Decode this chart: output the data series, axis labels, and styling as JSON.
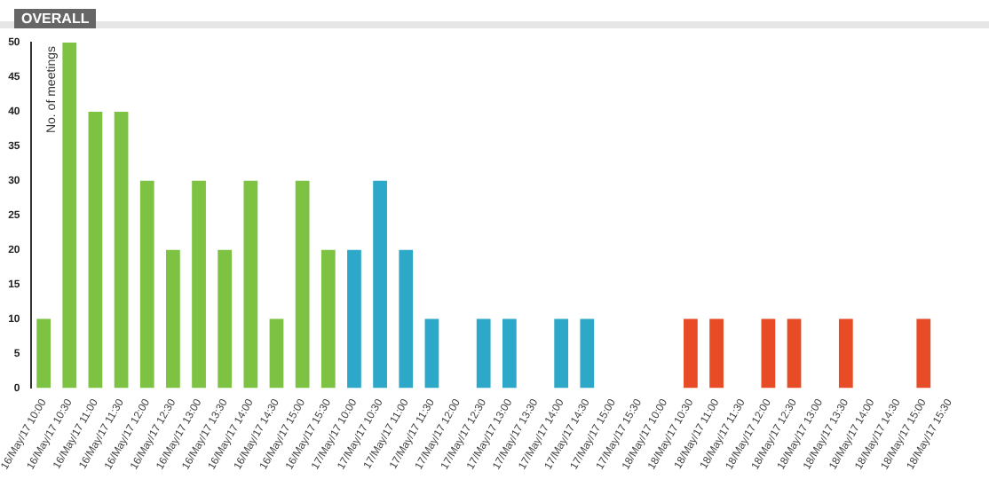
{
  "chart_data": {
    "type": "bar",
    "title": "OVERALL",
    "ylabel": "No. of meetings",
    "categories": [
      "16/May/17 10:00",
      "16/May/17 10:30",
      "16/May/17 11:00",
      "16/May/17 11:30",
      "16/May/17 12:00",
      "16/May/17 12:30",
      "16/May/17 13:00",
      "16/May/17 13:30",
      "16/May/17 14:00",
      "16/May/17 14:30",
      "16/May/17 15:00",
      "16/May/17 15:30",
      "17/May/17 10:00",
      "17/May/17 10:30",
      "17/May/17 11:00",
      "17/May/17 11:30",
      "17/May/17 12:00",
      "17/May/17 12:30",
      "17/May/17 13:00",
      "17/May/17 13:30",
      "17/May/17 14:00",
      "17/May/17 14:30",
      "17/May/17 15:00",
      "17/May/17 15:30",
      "18/May/17 10:00",
      "18/May/17 10:30",
      "18/May/17 11:00",
      "18/May/17 11:30",
      "18/May/17 12:00",
      "18/May/17 12:30",
      "18/May/17 13:00",
      "18/May/17 13:30",
      "18/May/17 14:00",
      "18/May/17 14:30",
      "18/May/17 15:00",
      "18/May/17 15:30"
    ],
    "values": [
      10,
      50,
      40,
      40,
      30,
      20,
      30,
      20,
      30,
      10,
      30,
      20,
      20,
      30,
      20,
      10,
      0,
      10,
      10,
      0,
      10,
      10,
      0,
      0,
      0,
      10,
      10,
      0,
      10,
      10,
      0,
      10,
      0,
      0,
      10,
      0
    ],
    "colors": [
      "#7dc242",
      "#7dc242",
      "#7dc242",
      "#7dc242",
      "#7dc242",
      "#7dc242",
      "#7dc242",
      "#7dc242",
      "#7dc242",
      "#7dc242",
      "#7dc242",
      "#7dc242",
      "#2ea8c8",
      "#2ea8c8",
      "#2ea8c8",
      "#2ea8c8",
      "#2ea8c8",
      "#2ea8c8",
      "#2ea8c8",
      "#2ea8c8",
      "#2ea8c8",
      "#2ea8c8",
      "#2ea8c8",
      "#2ea8c8",
      "#e84c26",
      "#e84c26",
      "#e84c26",
      "#e84c26",
      "#e84c26",
      "#e84c26",
      "#e84c26",
      "#e84c26",
      "#e84c26",
      "#e84c26",
      "#e84c26",
      "#e84c26"
    ],
    "ylim": [
      0,
      50
    ],
    "yticks": [
      0,
      5,
      10,
      15,
      20,
      25,
      30,
      35,
      40,
      45,
      50
    ],
    "grid": false,
    "legend": false
  }
}
